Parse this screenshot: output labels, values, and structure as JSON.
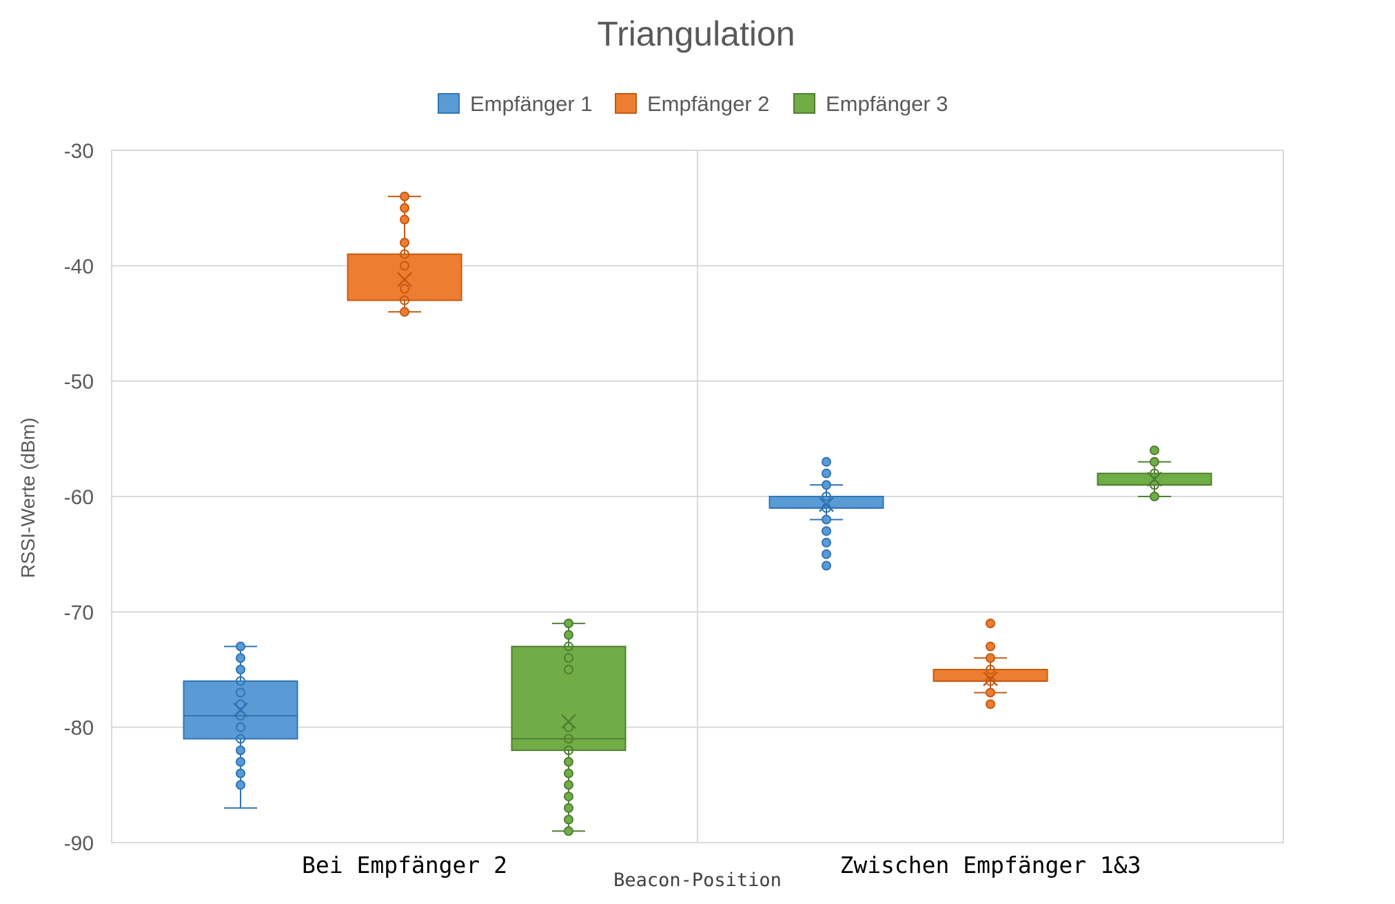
{
  "chart_data": {
    "type": "box",
    "title": "Triangulation",
    "xlabel": "Beacon-Position",
    "ylabel": "RSSI-Werte (dBm)",
    "ylim": [
      -90,
      -30
    ],
    "yticks": [
      -30,
      -40,
      -50,
      -60,
      -70,
      -80,
      -90
    ],
    "grid": true,
    "legend_position": "top",
    "categories": [
      "Bei Empfänger 2",
      "Zwischen Empfänger 1&3"
    ],
    "series": [
      {
        "name": "Empfänger 1",
        "color": "#5B9BD5",
        "stroke": "#2E75B6",
        "boxes": [
          {
            "whisker_low": -87,
            "q1": -81,
            "median": -79,
            "q3": -76,
            "whisker_high": -73,
            "mean": -78.5,
            "points": [
              -73,
              -74,
              -75,
              -76,
              -77,
              -78,
              -79,
              -80,
              -81,
              -82,
              -83,
              -84,
              -85
            ]
          },
          {
            "whisker_low": -62,
            "q1": -61,
            "median": -61,
            "q3": -60,
            "whisker_high": -59,
            "mean": -60.7,
            "points": [
              -57,
              -58,
              -59,
              -60,
              -61,
              -62,
              -63,
              -64,
              -65,
              -66
            ]
          }
        ]
      },
      {
        "name": "Empfänger 2",
        "color": "#ED7D31",
        "stroke": "#C55A11",
        "boxes": [
          {
            "whisker_low": -44,
            "q1": -43,
            "median": -43,
            "q3": -39,
            "whisker_high": -34,
            "mean": -41.2,
            "points": [
              -34,
              -35,
              -36,
              -38,
              -39,
              -40,
              -42,
              -43,
              -44
            ]
          },
          {
            "whisker_low": -77,
            "q1": -76,
            "median": -76,
            "q3": -75,
            "whisker_high": -74,
            "mean": -75.8,
            "points": [
              -71,
              -73,
              -74,
              -75,
              -76,
              -77,
              -78
            ]
          }
        ]
      },
      {
        "name": "Empfänger 3",
        "color": "#70AD47",
        "stroke": "#507E32",
        "boxes": [
          {
            "whisker_low": -89,
            "q1": -82,
            "median": -81,
            "q3": -73,
            "whisker_high": -71,
            "mean": -79.5,
            "points": [
              -71,
              -72,
              -73,
              -74,
              -75,
              -80,
              -81,
              -82,
              -83,
              -84,
              -85,
              -86,
              -87,
              -88,
              -89
            ]
          },
          {
            "whisker_low": -60,
            "q1": -59,
            "median": -59,
            "q3": -58,
            "whisker_high": -57,
            "mean": -58.5,
            "points": [
              -56,
              -57,
              -58,
              -59,
              -60
            ]
          }
        ]
      }
    ]
  }
}
